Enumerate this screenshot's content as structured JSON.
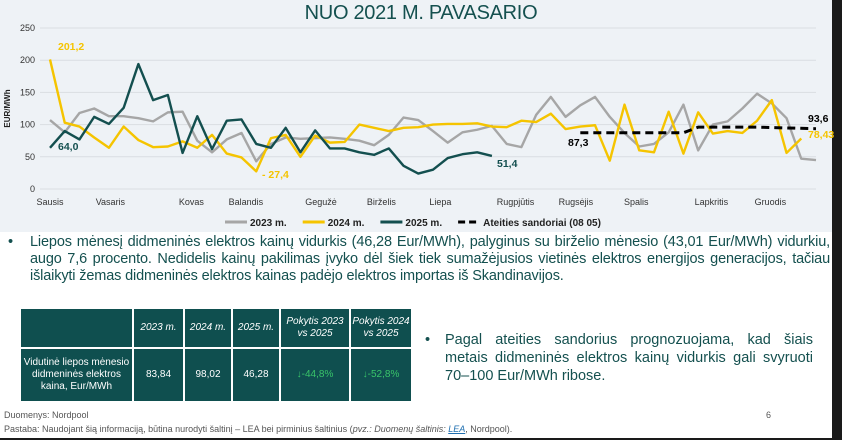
{
  "title": "NUO 2021 M. PAVASARIO",
  "chart_data": {
    "type": "line",
    "ylabel": "EUR/MWh",
    "ylim": [
      0,
      250
    ],
    "yticks": [
      0,
      50,
      100,
      150,
      200,
      250
    ],
    "grid": true,
    "legend_position": "bottom",
    "x_unit": "week",
    "month_labels": [
      "Sausis",
      "Vasaris",
      "Kovas",
      "Balandis",
      "Gegužė",
      "Birželis",
      "Liepa",
      "Rugpjūtis",
      "Rugsėjis",
      "Spalis",
      "Lapkritis",
      "Gruodis"
    ],
    "series": [
      {
        "name": "2023 m.",
        "color": "#a6a6a6",
        "dashed": false,
        "values": [
          107,
          88,
          118,
          125,
          113,
          113,
          110,
          105,
          119,
          120,
          75,
          57,
          77,
          87,
          43,
          70,
          80,
          78,
          79,
          80,
          78,
          75,
          68,
          84,
          111,
          107,
          90,
          72,
          88,
          92,
          98,
          70,
          65,
          115,
          143,
          112,
          130,
          143,
          112,
          87,
          66,
          70,
          88,
          131,
          60,
          100,
          105,
          125,
          148,
          133,
          110,
          47,
          45
        ]
      },
      {
        "name": "2024 m.",
        "color": "#f5c400",
        "dashed": false,
        "values": [
          201.2,
          103,
          97,
          80,
          64,
          97,
          76,
          65,
          66,
          74,
          64,
          84,
          55,
          49,
          27.4,
          79,
          84,
          50,
          83,
          72,
          73,
          100,
          95,
          90,
          95,
          96,
          100,
          101,
          101,
          102,
          97,
          96,
          106,
          104,
          117,
          93,
          97,
          99,
          44,
          131,
          60,
          57,
          120,
          55,
          119,
          86,
          90,
          87,
          106,
          138,
          56,
          78.43
        ]
      },
      {
        "name": "2025 m.",
        "color": "#134f4f",
        "dashed": false,
        "values": [
          64.0,
          90,
          77,
          112,
          101,
          126,
          194,
          138,
          146,
          56,
          113,
          62,
          106,
          108,
          70,
          64,
          95,
          57,
          91,
          63,
          63,
          57,
          53,
          63,
          36,
          24,
          30,
          48,
          54,
          57,
          51.4
        ]
      },
      {
        "name": "Ateities sandoriai (08 05)",
        "color": "#000000",
        "dashed": true,
        "points": [
          [
            36,
            87.3
          ],
          [
            43,
            87.3
          ],
          [
            44,
            96
          ],
          [
            48,
            96
          ],
          [
            52,
            93.6
          ]
        ]
      }
    ],
    "data_labels": [
      {
        "text": "201,2",
        "series": "2024 m."
      },
      {
        "text": "64,0",
        "series": "2025 m."
      },
      {
        "text": "27,4",
        "series": "2024 m."
      },
      {
        "text": "51,4",
        "series": "2025 m."
      },
      {
        "text": "87,3",
        "series": "Ateities sandoriai (08 05)"
      },
      {
        "text": "93,6",
        "series": "Ateities sandoriai (08 05)"
      },
      {
        "text": "78,43",
        "series": "2024 m."
      }
    ]
  },
  "bullet1": "Liepos mėnesį didmeninės elektros kainų vidurkis (46,28 Eur/MWh), palyginus su birželio mėnesio (43,01 Eur/MWh) vidurkiu, augo 7,6 procento. Nedidelis kainų pakilimas įvyko dėl šiek tiek sumažėjusios vietinės elektros energijos generacijos, tačiau išlaikyti žemas didmeninės elektros kainas padėjo elektros importas iš Skandinavijos.",
  "bullet2": "Pagal ateities sandorius prognozuojama, kad šiais metais didmeninės elektros kainų vidurkis gali svyruoti 70–100 Eur/MWh ribose.",
  "table": {
    "headers": [
      "",
      "2023 m.",
      "2024 m.",
      "2025 m.",
      "Pokytis 2023 vs 2025",
      "Pokytis 2024 vs 2025"
    ],
    "row_label": "Vidutinė liepos mėnesio didmeninės elektros kaina, Eur/MWh",
    "values": [
      "83,84",
      "98,02",
      "46,28",
      "↓-44,8%",
      "↓-52,8%"
    ],
    "change_color": "#39c46a"
  },
  "footer": {
    "source": "Duomenys: Nordpool",
    "note_prefix": "Pastaba: Naudojant šią informaciją, būtina nurodyti šaltinį – LEA bei pirminius šaltinius (",
    "note_italic": "pvz.: Duomenų šaltinis: ",
    "note_link": "LEA",
    "note_suffix": ", Nordpool).",
    "page": "6"
  }
}
